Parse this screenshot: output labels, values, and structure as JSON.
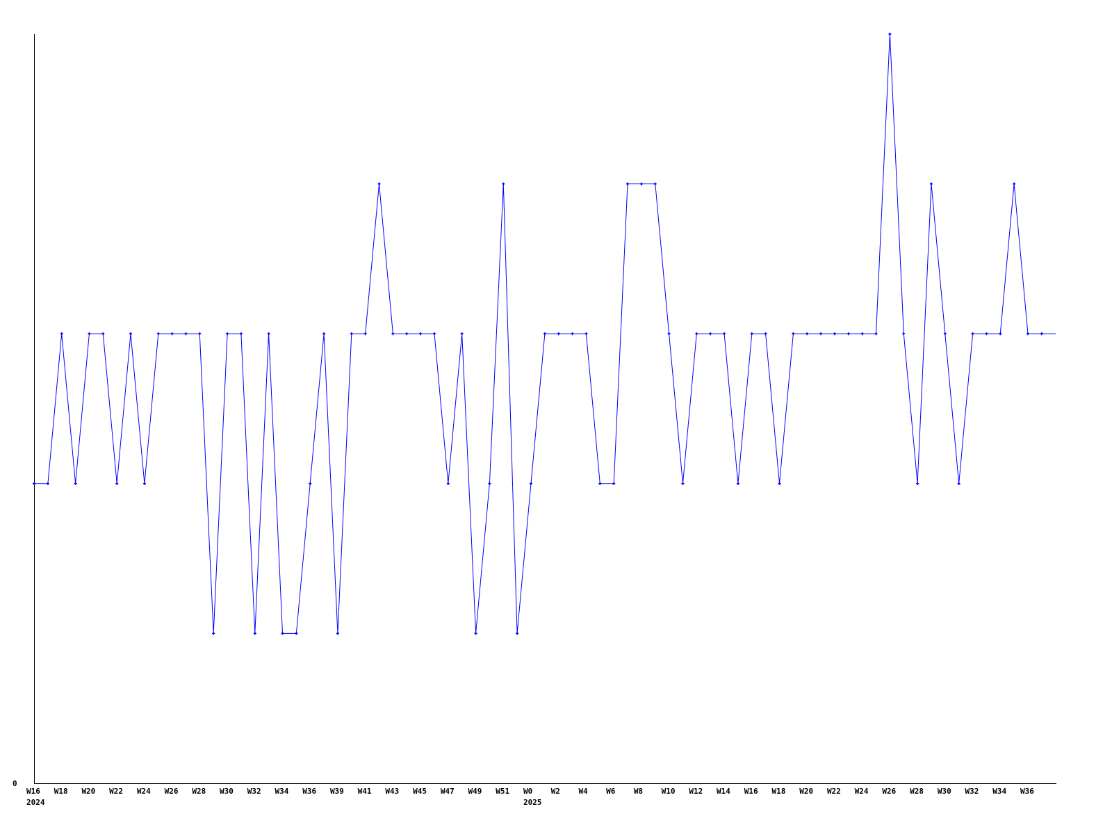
{
  "chart_data": {
    "type": "line",
    "title": "",
    "xlabel": "",
    "ylabel": "",
    "ylim": [
      0,
      5
    ],
    "y_tick_labels": [
      {
        "value": 0,
        "label": "0"
      }
    ],
    "x_tick_labels": [
      {
        "index": 0,
        "label": "W16"
      },
      {
        "index": 2,
        "label": "W18"
      },
      {
        "index": 4,
        "label": "W20"
      },
      {
        "index": 6,
        "label": "W22"
      },
      {
        "index": 8,
        "label": "W24"
      },
      {
        "index": 10,
        "label": "W26"
      },
      {
        "index": 12,
        "label": "W28"
      },
      {
        "index": 14,
        "label": "W30"
      },
      {
        "index": 16,
        "label": "W32"
      },
      {
        "index": 18,
        "label": "W34"
      },
      {
        "index": 20,
        "label": "W36"
      },
      {
        "index": 22,
        "label": "W39"
      },
      {
        "index": 24,
        "label": "W41"
      },
      {
        "index": 26,
        "label": "W43"
      },
      {
        "index": 28,
        "label": "W45"
      },
      {
        "index": 30,
        "label": "W47"
      },
      {
        "index": 32,
        "label": "W49"
      },
      {
        "index": 34,
        "label": "W51"
      },
      {
        "index": 36,
        "label": "W0"
      },
      {
        "index": 38,
        "label": "W2"
      },
      {
        "index": 40,
        "label": "W4"
      },
      {
        "index": 42,
        "label": "W6"
      },
      {
        "index": 44,
        "label": "W8"
      },
      {
        "index": 46,
        "label": "W10"
      },
      {
        "index": 48,
        "label": "W12"
      },
      {
        "index": 50,
        "label": "W14"
      },
      {
        "index": 52,
        "label": "W16"
      },
      {
        "index": 54,
        "label": "W18"
      },
      {
        "index": 56,
        "label": "W20"
      },
      {
        "index": 58,
        "label": "W22"
      },
      {
        "index": 60,
        "label": "W24"
      },
      {
        "index": 62,
        "label": "W26"
      },
      {
        "index": 64,
        "label": "W28"
      },
      {
        "index": 66,
        "label": "W30"
      },
      {
        "index": 68,
        "label": "W32"
      },
      {
        "index": 70,
        "label": "W34"
      },
      {
        "index": 72,
        "label": "W36"
      }
    ],
    "year_labels": [
      {
        "index": 0,
        "label": "2024"
      },
      {
        "index": 36,
        "label": "2025"
      }
    ],
    "series": [
      {
        "color": "#0000ff",
        "values": [
          2,
          2,
          3,
          2,
          3,
          3,
          2,
          3,
          2,
          3,
          3,
          3,
          3,
          1,
          3,
          3,
          1,
          3,
          1,
          1,
          2,
          3,
          1,
          3,
          3,
          4,
          3,
          3,
          3,
          3,
          2,
          3,
          1,
          2,
          4,
          1,
          2,
          3,
          3,
          3,
          3,
          2,
          2,
          4,
          4,
          4,
          3,
          2,
          3,
          3,
          3,
          2,
          3,
          3,
          2,
          3,
          3,
          3,
          3,
          3,
          3,
          3,
          5,
          3,
          2,
          4,
          3,
          2,
          3,
          3,
          3,
          4,
          3,
          3
        ]
      }
    ],
    "grid": false,
    "legend": "none"
  }
}
